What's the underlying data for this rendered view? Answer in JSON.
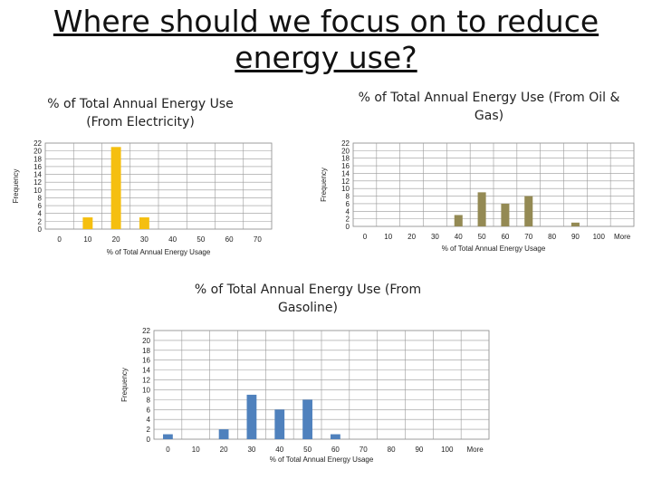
{
  "slide": {
    "title": "Where should we focus on to reduce energy use?"
  },
  "chart_data": [
    {
      "type": "bar",
      "title": "% of Total Annual Energy Use (From Electricity)",
      "xlabel": "% of Total Annual Energy Usage",
      "ylabel": "Frequency",
      "categories": [
        "0",
        "10",
        "20",
        "30",
        "40",
        "50",
        "60",
        "70"
      ],
      "values": [
        0,
        3,
        21,
        3,
        0,
        0,
        0,
        0
      ],
      "ylim": [
        0,
        22
      ],
      "yticks": [
        0,
        2,
        4,
        6,
        8,
        10,
        12,
        14,
        16,
        18,
        20,
        22
      ],
      "grid": true,
      "color": "#f5bf10"
    },
    {
      "type": "bar",
      "title": "% of Total Annual Energy Use (From Oil & Gas)",
      "xlabel": "% of Total Annual Energy Usage",
      "ylabel": "Frequency",
      "categories": [
        "0",
        "10",
        "20",
        "30",
        "40",
        "50",
        "60",
        "70",
        "80",
        "90",
        "100",
        "More"
      ],
      "values": [
        0,
        0,
        0,
        0,
        3,
        9,
        6,
        8,
        0,
        1,
        0,
        0
      ],
      "ylim": [
        0,
        22
      ],
      "yticks": [
        0,
        2,
        4,
        6,
        8,
        10,
        12,
        14,
        16,
        18,
        20,
        22
      ],
      "grid": true,
      "color": "#948a54"
    },
    {
      "type": "bar",
      "title": "% of Total Annual Energy Use (From Gasoline)",
      "xlabel": "% of Total Annual Energy Usage",
      "ylabel": "Frequency",
      "categories": [
        "0",
        "10",
        "20",
        "30",
        "40",
        "50",
        "60",
        "70",
        "80",
        "90",
        "100",
        "More"
      ],
      "values": [
        1,
        0,
        2,
        9,
        6,
        8,
        1,
        0,
        0,
        0,
        0,
        0
      ],
      "ylim": [
        0,
        22
      ],
      "yticks": [
        0,
        2,
        4,
        6,
        8,
        10,
        12,
        14,
        16,
        18,
        20,
        22
      ],
      "grid": true,
      "color": "#4f81bd"
    }
  ]
}
